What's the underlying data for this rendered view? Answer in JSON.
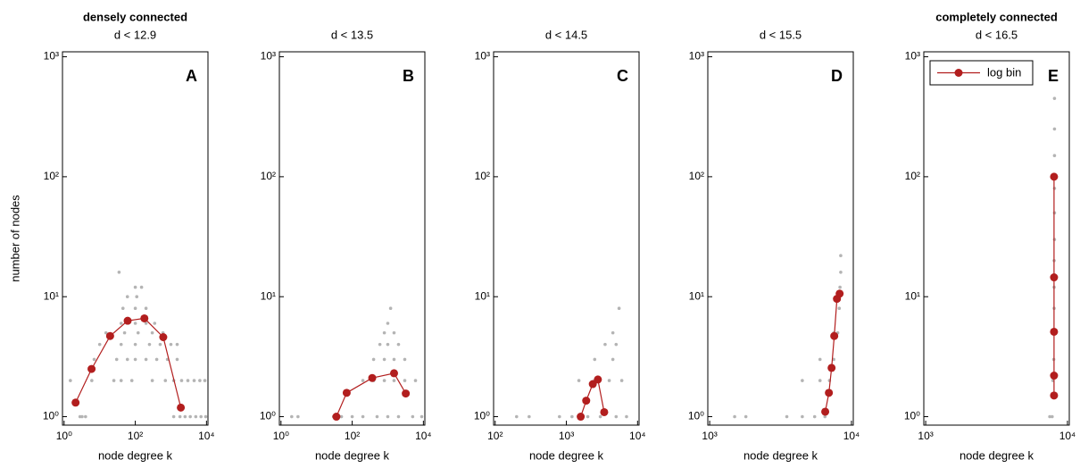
{
  "chart_data": [
    {
      "type": "scatter",
      "title": "densely connected",
      "subtitle": "d < 12.9",
      "panel_label": "A",
      "xlabel": "node degree k",
      "ylabel": "number of nodes",
      "log_x": true,
      "log_y": true,
      "xlim": [
        0.9,
        11000
      ],
      "ylim": [
        0.85,
        1100
      ],
      "xticks": [
        {
          "value": 1,
          "label": "10⁰"
        },
        {
          "value": 100,
          "label": "10²"
        },
        {
          "value": 10000,
          "label": "10⁴"
        }
      ],
      "yticks": [
        {
          "value": 1,
          "label": "10⁰"
        },
        {
          "value": 10,
          "label": "10¹"
        },
        {
          "value": 100,
          "label": "10²"
        },
        {
          "value": 1000,
          "label": "10³"
        }
      ],
      "scatter": {
        "color": "#b4b4b4",
        "x": [
          2.8,
          3.2,
          4,
          1200,
          1800,
          2500,
          3500,
          5000,
          7000,
          9500,
          1.5,
          6,
          25,
          40,
          80,
          300,
          700,
          1200,
          2000,
          3000,
          4500,
          6500,
          9000,
          7,
          30,
          60,
          100,
          200,
          400,
          800,
          1500,
          10,
          40,
          100,
          250,
          500,
          1000,
          1500,
          15,
          50,
          120,
          300,
          600,
          40,
          100,
          200,
          350,
          45,
          100,
          200,
          60,
          110,
          100,
          150,
          35
        ],
        "y": [
          1,
          1,
          1,
          1,
          1,
          1,
          1,
          1,
          1,
          1,
          2,
          2,
          2,
          2,
          2,
          2,
          2,
          2,
          2,
          2,
          2,
          2,
          2,
          3,
          3,
          3,
          3,
          3,
          3,
          3,
          3,
          4,
          4,
          4,
          4,
          4,
          4,
          4,
          5,
          5,
          5,
          5,
          5,
          6,
          6,
          6,
          6,
          8,
          8,
          8,
          10,
          10,
          12,
          12,
          16
        ]
      },
      "log_bin": {
        "color": "#b21e1e",
        "x": [
          2.1,
          5.9,
          19.6,
          61,
          180,
          610,
          1900
        ],
        "values": [
          1.31,
          2.5,
          4.7,
          6.3,
          6.6,
          4.6,
          1.19
        ]
      }
    },
    {
      "type": "scatter",
      "subtitle": "d < 13.5",
      "panel_label": "B",
      "xlabel": "node degree k",
      "log_x": true,
      "log_y": true,
      "xlim": [
        0.9,
        11000
      ],
      "ylim": [
        0.85,
        1100
      ],
      "xticks": [
        {
          "value": 1,
          "label": "10⁰"
        },
        {
          "value": 100,
          "label": "10²"
        },
        {
          "value": 10000,
          "label": "10⁴"
        }
      ],
      "yticks": [
        {
          "value": 1,
          "label": "10⁰"
        },
        {
          "value": 10,
          "label": "10¹"
        },
        {
          "value": 100,
          "label": "10²"
        },
        {
          "value": 1000,
          "label": "10³"
        }
      ],
      "scatter": {
        "color": "#b4b4b4",
        "x": [
          2,
          3,
          30,
          50,
          100,
          200,
          500,
          1000,
          2000,
          5000,
          9000,
          200,
          400,
          800,
          1500,
          3000,
          6000,
          400,
          800,
          1500,
          3000,
          600,
          1000,
          2000,
          800,
          1500,
          1000,
          1200
        ],
        "y": [
          1,
          1,
          1,
          1,
          1,
          1,
          1,
          1,
          1,
          1,
          1,
          2,
          2,
          2,
          2,
          2,
          2,
          3,
          3,
          3,
          3,
          4,
          4,
          4,
          5,
          5,
          6,
          8
        ]
      },
      "log_bin": {
        "color": "#b21e1e",
        "x": [
          36,
          70,
          365,
          1500,
          3200
        ],
        "values": [
          1.0,
          1.58,
          2.1,
          2.3,
          1.56
        ]
      }
    },
    {
      "type": "scatter",
      "subtitle": "d < 14.5",
      "panel_label": "C",
      "xlabel": "node degree k",
      "log_x": true,
      "log_y": true,
      "xlim": [
        95,
        10500
      ],
      "ylim": [
        0.85,
        1100
      ],
      "xticks": [
        {
          "value": 100,
          "label": "10²"
        },
        {
          "value": 1000,
          "label": "10³"
        },
        {
          "value": 10000,
          "label": "10⁴"
        }
      ],
      "yticks": [
        {
          "value": 1,
          "label": "10⁰"
        },
        {
          "value": 10,
          "label": "10¹"
        },
        {
          "value": 100,
          "label": "10²"
        },
        {
          "value": 1000,
          "label": "10³"
        }
      ],
      "scatter": {
        "color": "#b4b4b4",
        "x": [
          200,
          300,
          800,
          1200,
          2000,
          3000,
          5000,
          7000,
          1500,
          2500,
          4000,
          6000,
          2500,
          4500,
          3500,
          5000,
          4500,
          5500
        ],
        "y": [
          1,
          1,
          1,
          1,
          1,
          1,
          1,
          1,
          2,
          2,
          2,
          2,
          3,
          3,
          4,
          4,
          5,
          8
        ]
      },
      "log_bin": {
        "color": "#b21e1e",
        "x": [
          1590,
          1900,
          2350,
          2770,
          3400
        ],
        "values": [
          1.0,
          1.36,
          1.87,
          2.04,
          1.09
        ]
      }
    },
    {
      "type": "scatter",
      "subtitle": "d < 15.5",
      "panel_label": "D",
      "xlabel": "node degree k",
      "log_x": true,
      "log_y": true,
      "xlim": [
        970,
        10300
      ],
      "ylim": [
        0.85,
        1100
      ],
      "xticks": [
        {
          "value": 1000,
          "label": "10³"
        },
        {
          "value": 10000,
          "label": "10⁴"
        }
      ],
      "yticks": [
        {
          "value": 1,
          "label": "10⁰"
        },
        {
          "value": 10,
          "label": "10¹"
        },
        {
          "value": 100,
          "label": "10²"
        },
        {
          "value": 1000,
          "label": "10³"
        }
      ],
      "scatter": {
        "color": "#b4b4b4",
        "x": [
          1500,
          1800,
          3500,
          4500,
          5500,
          6500,
          4500,
          6000,
          7000,
          6000,
          7500,
          7500,
          8000,
          8200,
          8300,
          8400,
          8400
        ],
        "y": [
          1,
          1,
          1,
          1,
          1,
          1,
          2,
          2,
          2,
          3,
          3,
          5,
          5,
          8,
          12,
          16,
          22
        ]
      },
      "log_bin": {
        "color": "#b21e1e",
        "x": [
          6530,
          6930,
          7240,
          7560,
          7900,
          8250
        ],
        "values": [
          1.1,
          1.58,
          2.55,
          4.7,
          9.6,
          10.6
        ]
      }
    },
    {
      "type": "scatter",
      "title": "completely connected",
      "subtitle": "d < 16.5",
      "panel_label": "E",
      "xlabel": "node degree k",
      "log_x": true,
      "log_y": true,
      "xlim": [
        970,
        10300
      ],
      "ylim": [
        0.85,
        1100
      ],
      "xticks": [
        {
          "value": 1000,
          "label": "10³"
        },
        {
          "value": 10000,
          "label": "10⁴"
        }
      ],
      "yticks": [
        {
          "value": 1,
          "label": "10⁰"
        },
        {
          "value": 10,
          "label": "10¹"
        },
        {
          "value": 100,
          "label": "10²"
        },
        {
          "value": 1000,
          "label": "10³"
        }
      ],
      "legend": "upper left",
      "scatter": {
        "color": "#b4b4b4",
        "x": [
          7500,
          7800,
          7900,
          8000,
          8000,
          8050,
          8050,
          8050,
          8100,
          8100,
          8100,
          8100,
          8100,
          8100
        ],
        "y": [
          1,
          1,
          2,
          3,
          5,
          8,
          12,
          20,
          30,
          50,
          80,
          150,
          250,
          450
        ]
      },
      "log_bin": {
        "name": "log bin",
        "color": "#b21e1e",
        "x": [
          8040,
          8040,
          8040,
          8040,
          8040
        ],
        "values": [
          1.5,
          2.2,
          5.1,
          14.5,
          100
        ]
      }
    }
  ]
}
